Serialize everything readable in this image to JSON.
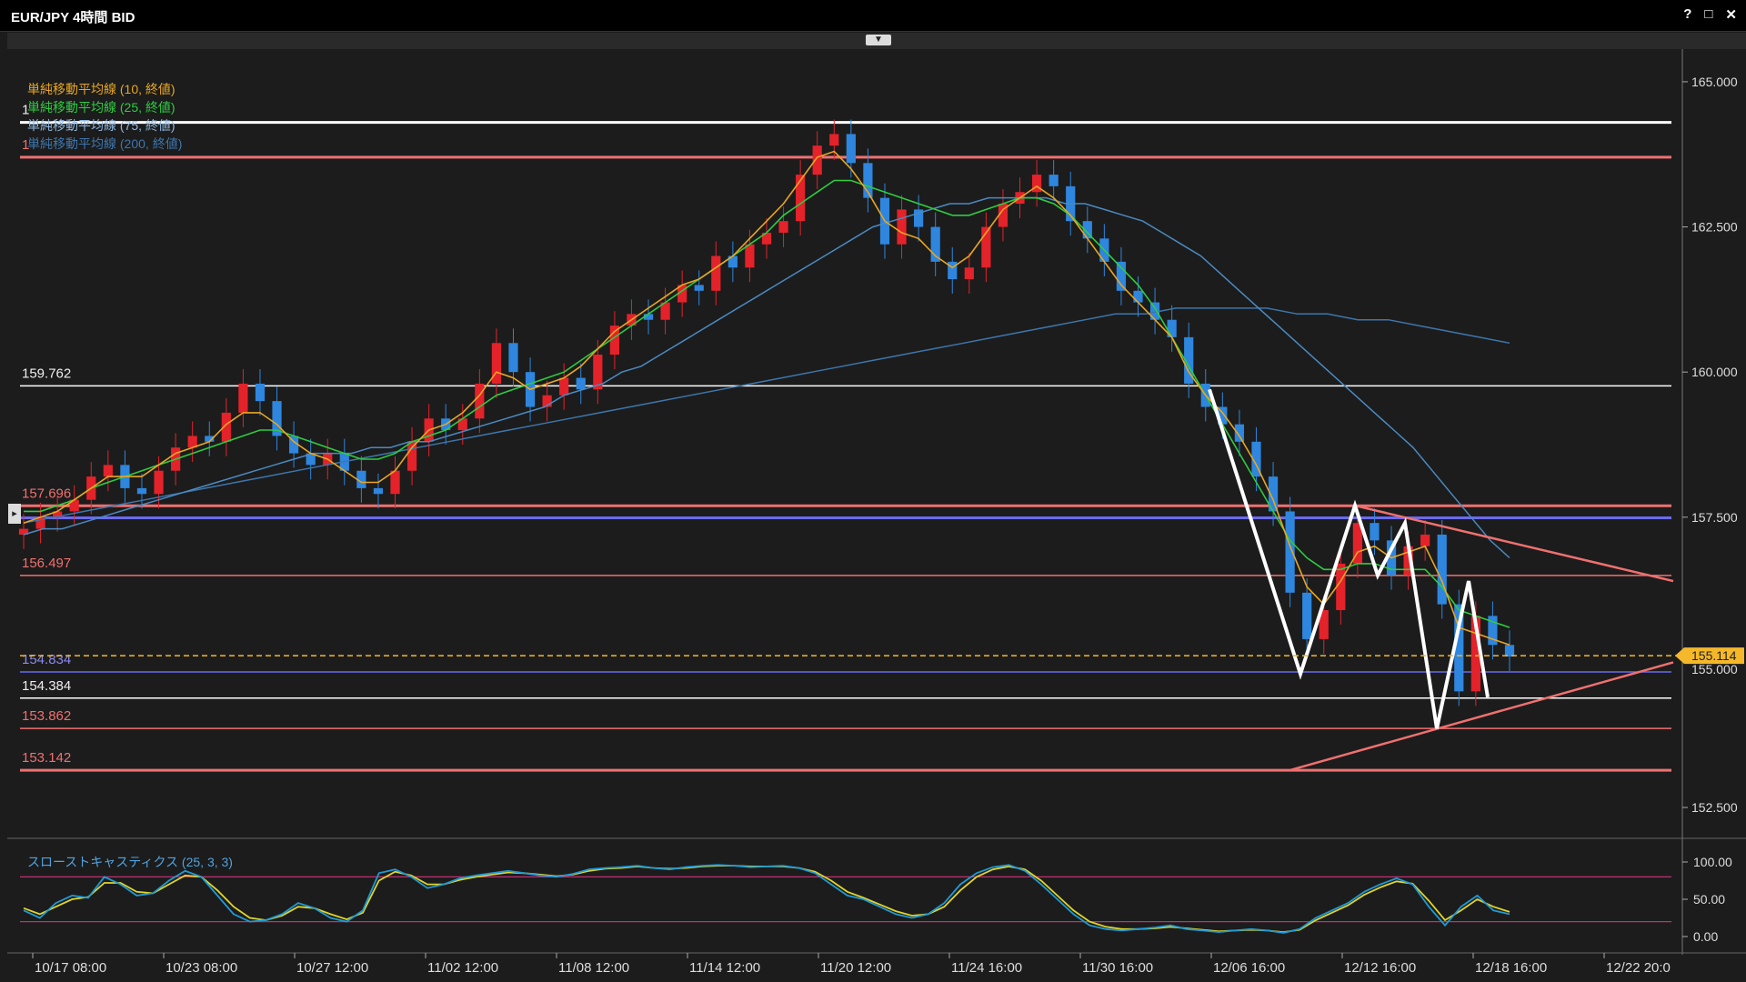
{
  "window": {
    "title": "EUR/JPY 4時間 BID",
    "help_icon": "?",
    "maximize_icon": "□",
    "close_icon": "✕"
  },
  "legend": {
    "sma10": "単純移動平均線 (10, 終値)",
    "sma25": "単純移動平均線 (25, 終値)",
    "sma75": "単純移動平均線 (75, 終値)",
    "sma200": "単純移動平均線 (200, 終値)"
  },
  "stoch_label": "スローストキャスティクス (25, 3, 3)",
  "colors": {
    "bg": "#1c1c1c",
    "up": "#e4222a",
    "down": "#2e86de",
    "sma10": "#e8a623",
    "sma25": "#2ecc40",
    "sma75": "#4a8ac2",
    "sma200": "#3d76ad",
    "stoch_k": "#1f9ad6",
    "stoch_d": "#e0d42a",
    "red_line": "#f07070",
    "blue_line": "#6a6af0",
    "white_line": "#ffffff",
    "current": "#f5b82a"
  },
  "chart_data": {
    "type": "candlestick",
    "symbol": "EUR/JPY",
    "timeframe": "4時間",
    "ylim": [
      152.0,
      165.5
    ],
    "y_ticks": [
      "165.000",
      "162.500",
      "160.000",
      "157.500",
      "152.500"
    ],
    "x_ticks": [
      "10/17 08:00",
      "10/23 08:00",
      "10/27 12:00",
      "11/02 12:00",
      "11/08 12:00",
      "11/14 12:00",
      "11/20 12:00",
      "11/24 16:00",
      "11/30 16:00",
      "12/06 16:00",
      "12/12 16:00",
      "12/18 16:00",
      "12/22 20:0"
    ],
    "current_price": "155.114",
    "price_tag_hidden": "155.000",
    "horizontal_levels": [
      {
        "value": 164.3,
        "label": "1",
        "color": "white_line",
        "width": 3
      },
      {
        "value": 163.7,
        "label": "1",
        "color": "red_line",
        "width": 3
      },
      {
        "value": 159.762,
        "label": "159.762",
        "color": "white_line",
        "width": 1.5
      },
      {
        "value": 157.696,
        "label": "157.696",
        "color": "red_line",
        "width": 3
      },
      {
        "value": 157.49,
        "label": "",
        "color": "blue_line",
        "width": 3
      },
      {
        "value": 156.497,
        "label": "156.497",
        "color": "red_line",
        "width": 1.5
      },
      {
        "value": 154.834,
        "label": "154.834",
        "color": "blue_line",
        "width": 1.5
      },
      {
        "value": 154.384,
        "label": "154.384",
        "color": "white_line",
        "width": 1.5
      },
      {
        "value": 153.862,
        "label": "153.862",
        "color": "red_line",
        "width": 1.5
      },
      {
        "value": 153.142,
        "label": "153.142",
        "color": "red_line",
        "width": 3
      }
    ],
    "closes": [
      157.3,
      157.5,
      157.6,
      157.8,
      158.2,
      158.4,
      158.0,
      157.9,
      158.3,
      158.7,
      158.9,
      158.8,
      159.3,
      159.8,
      159.5,
      158.9,
      158.6,
      158.4,
      158.6,
      158.3,
      158.0,
      157.9,
      158.3,
      158.8,
      159.2,
      159.0,
      159.2,
      159.8,
      160.5,
      160.0,
      159.4,
      159.6,
      159.9,
      159.7,
      160.3,
      160.8,
      161.0,
      160.9,
      161.2,
      161.5,
      161.4,
      162.0,
      161.8,
      162.2,
      162.4,
      162.6,
      163.4,
      163.9,
      164.1,
      163.6,
      163.0,
      162.2,
      162.8,
      162.5,
      161.9,
      161.6,
      161.8,
      162.5,
      162.9,
      163.1,
      163.4,
      163.2,
      162.6,
      162.3,
      161.9,
      161.4,
      161.2,
      160.9,
      160.6,
      159.8,
      159.4,
      159.1,
      158.8,
      158.2,
      157.6,
      156.2,
      155.4,
      155.9,
      156.7,
      157.4,
      157.1,
      156.5,
      157.0,
      157.2,
      156.0,
      154.5,
      155.8,
      155.3,
      155.1
    ],
    "sma10": [
      157.4,
      157.5,
      157.6,
      157.8,
      158.0,
      158.2,
      158.2,
      158.2,
      158.4,
      158.6,
      158.7,
      158.8,
      159.1,
      159.3,
      159.3,
      159.1,
      158.8,
      158.6,
      158.5,
      158.3,
      158.1,
      158.1,
      158.3,
      158.7,
      159.0,
      159.1,
      159.3,
      159.6,
      160.0,
      159.9,
      159.7,
      159.8,
      159.9,
      160.1,
      160.4,
      160.7,
      160.9,
      161.1,
      161.3,
      161.5,
      161.6,
      161.8,
      162.0,
      162.3,
      162.6,
      162.9,
      163.3,
      163.7,
      163.8,
      163.5,
      163.1,
      162.6,
      162.4,
      162.3,
      162.0,
      161.8,
      162.0,
      162.4,
      162.8,
      163.0,
      163.2,
      163.0,
      162.7,
      162.3,
      161.9,
      161.5,
      161.2,
      160.9,
      160.6,
      160.0,
      159.6,
      159.3,
      158.9,
      158.4,
      157.8,
      157.0,
      156.3,
      156.0,
      156.4,
      156.9,
      157.0,
      156.8,
      156.9,
      157.0,
      156.4,
      155.6,
      155.5,
      155.4,
      155.3
    ],
    "sma25": [
      157.6,
      157.6,
      157.7,
      157.8,
      158.0,
      158.1,
      158.2,
      158.3,
      158.4,
      158.5,
      158.6,
      158.7,
      158.8,
      158.9,
      159.0,
      159.0,
      158.9,
      158.8,
      158.7,
      158.6,
      158.5,
      158.5,
      158.6,
      158.8,
      158.9,
      159.0,
      159.2,
      159.4,
      159.6,
      159.7,
      159.8,
      159.9,
      160.0,
      160.2,
      160.4,
      160.6,
      160.8,
      161.0,
      161.2,
      161.4,
      161.6,
      161.8,
      162.0,
      162.2,
      162.4,
      162.7,
      162.9,
      163.1,
      163.3,
      163.3,
      163.2,
      163.1,
      163.0,
      162.9,
      162.8,
      162.7,
      162.7,
      162.8,
      162.9,
      163.0,
      163.0,
      162.9,
      162.7,
      162.4,
      162.1,
      161.8,
      161.5,
      161.1,
      160.6,
      160.1,
      159.6,
      159.1,
      158.6,
      158.1,
      157.6,
      157.1,
      156.8,
      156.6,
      156.6,
      156.7,
      156.7,
      156.6,
      156.6,
      156.6,
      156.3,
      155.9,
      155.8,
      155.7,
      155.6
    ],
    "sma75": [
      157.2,
      157.3,
      157.3,
      157.4,
      157.5,
      157.6,
      157.7,
      157.8,
      157.9,
      158.0,
      158.1,
      158.2,
      158.3,
      158.4,
      158.5,
      158.6,
      158.6,
      158.6,
      158.7,
      158.7,
      158.8,
      158.8,
      158.9,
      159.0,
      159.1,
      159.2,
      159.3,
      159.4,
      159.6,
      159.7,
      159.8,
      160.0,
      160.1,
      160.3,
      160.5,
      160.7,
      160.9,
      161.1,
      161.3,
      161.5,
      161.7,
      161.9,
      162.1,
      162.3,
      162.5,
      162.6,
      162.7,
      162.8,
      162.9,
      162.9,
      163.0,
      163.0,
      163.0,
      163.0,
      162.9,
      162.9,
      162.8,
      162.7,
      162.6,
      162.4,
      162.2,
      162.0,
      161.7,
      161.4,
      161.1,
      160.8,
      160.5,
      160.2,
      159.9,
      159.6,
      159.3,
      159.0,
      158.7,
      158.3,
      157.9,
      157.5,
      157.1,
      156.8
    ],
    "sma200": [
      157.4,
      157.5,
      157.6,
      157.7,
      157.8,
      157.9,
      158.0,
      158.1,
      158.2,
      158.3,
      158.4,
      158.5,
      158.6,
      158.7,
      158.8,
      158.9,
      159.0,
      159.1,
      159.2,
      159.3,
      159.4,
      159.5,
      159.6,
      159.7,
      159.8,
      159.9,
      160.0,
      160.1,
      160.2,
      160.3,
      160.4,
      160.5,
      160.6,
      160.7,
      160.8,
      160.9,
      161.0,
      161.0,
      161.1,
      161.1,
      161.1,
      161.1,
      161.0,
      161.0,
      160.9,
      160.9,
      160.8,
      160.7,
      160.6,
      160.5
    ],
    "triangle_upper": [
      [
        1490,
        157.7
      ],
      [
        1840,
        156.4
      ]
    ],
    "triangle_lower": [
      [
        1418,
        153.14
      ],
      [
        1840,
        155.0
      ]
    ],
    "zigzag": [
      [
        1330,
        159.7
      ],
      [
        1430,
        154.8
      ],
      [
        1490,
        157.7
      ],
      [
        1515,
        156.5
      ],
      [
        1545,
        157.4
      ],
      [
        1580,
        153.86
      ],
      [
        1615,
        156.4
      ],
      [
        1636,
        154.4
      ]
    ],
    "stochastic": {
      "levels": [
        0,
        50,
        100
      ],
      "tick_labels": [
        "100.00",
        "50.00",
        "0.00"
      ],
      "bands": [
        80,
        20
      ],
      "k": [
        35,
        25,
        45,
        55,
        52,
        80,
        70,
        55,
        58,
        75,
        88,
        80,
        55,
        30,
        20,
        22,
        30,
        45,
        38,
        25,
        20,
        35,
        85,
        90,
        80,
        65,
        70,
        78,
        82,
        85,
        88,
        85,
        82,
        80,
        84,
        90,
        92,
        93,
        95,
        92,
        90,
        93,
        95,
        96,
        95,
        93,
        94,
        95,
        92,
        85,
        70,
        55,
        50,
        40,
        30,
        25,
        30,
        45,
        70,
        85,
        93,
        96,
        88,
        70,
        50,
        30,
        15,
        10,
        8,
        10,
        12,
        15,
        10,
        8,
        6,
        8,
        10,
        8,
        5,
        10,
        25,
        35,
        45,
        60,
        70,
        78,
        70,
        40,
        15,
        40,
        55,
        35,
        30
      ],
      "d": [
        38,
        30,
        40,
        50,
        53,
        72,
        72,
        60,
        58,
        70,
        82,
        80,
        62,
        40,
        25,
        22,
        28,
        40,
        38,
        30,
        23,
        32,
        75,
        87,
        82,
        70,
        70,
        76,
        80,
        83,
        86,
        85,
        83,
        81,
        83,
        88,
        91,
        92,
        94,
        92,
        91,
        92,
        94,
        95,
        95,
        94,
        94,
        94,
        92,
        87,
        75,
        60,
        52,
        43,
        34,
        28,
        30,
        40,
        62,
        80,
        90,
        94,
        90,
        75,
        55,
        35,
        20,
        13,
        10,
        10,
        11,
        13,
        11,
        9,
        7,
        8,
        9,
        8,
        6,
        9,
        22,
        32,
        42,
        56,
        66,
        74,
        71,
        48,
        22,
        35,
        50,
        40,
        33
      ]
    }
  }
}
